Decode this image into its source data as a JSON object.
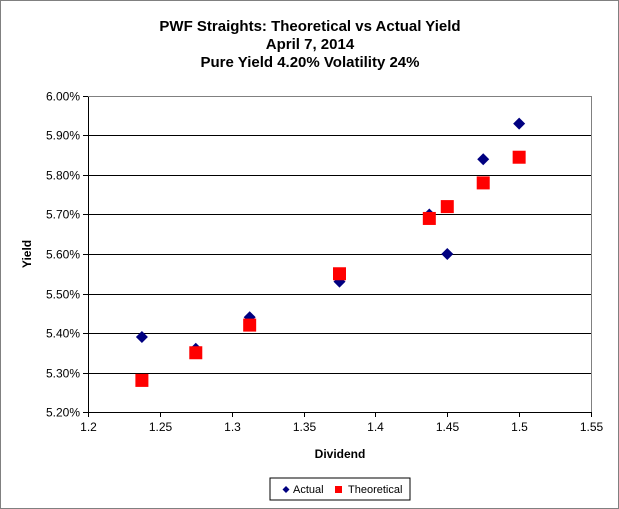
{
  "chart_data": {
    "type": "scatter",
    "title": [
      "PWF Straights: Theoretical vs Actual Yield",
      "April 7, 2014",
      "Pure Yield 4.20% Volatility 24%"
    ],
    "xlabel": "Dividend",
    "ylabel": "Yield",
    "xlim": [
      1.2,
      1.55
    ],
    "ylim": [
      5.2,
      6.0
    ],
    "x_ticks": [
      "1.2",
      "1.25",
      "1.3",
      "1.35",
      "1.4",
      "1.45",
      "1.5",
      "1.55"
    ],
    "x_tick_values": [
      1.2,
      1.25,
      1.3,
      1.35,
      1.4,
      1.45,
      1.5,
      1.55
    ],
    "y_ticks": [
      "5.20%",
      "5.30%",
      "5.40%",
      "5.50%",
      "5.60%",
      "5.70%",
      "5.80%",
      "5.90%",
      "6.00%"
    ],
    "y_tick_values": [
      5.2,
      5.3,
      5.4,
      5.5,
      5.6,
      5.7,
      5.8,
      5.9,
      6.0
    ],
    "grid": "horizontal",
    "legend_position": "bottom",
    "series": [
      {
        "name": "Actual",
        "marker": "diamond",
        "color": "#000080",
        "x": [
          1.2375,
          1.275,
          1.3125,
          1.375,
          1.4375,
          1.45,
          1.475,
          1.5
        ],
        "y": [
          5.39,
          5.36,
          5.44,
          5.53,
          5.7,
          5.6,
          5.84,
          5.93
        ]
      },
      {
        "name": "Theoretical",
        "marker": "square",
        "color": "#ff0000",
        "x": [
          1.2375,
          1.275,
          1.3125,
          1.375,
          1.4375,
          1.45,
          1.475,
          1.5
        ],
        "y": [
          5.28,
          5.35,
          5.42,
          5.55,
          5.69,
          5.72,
          5.78,
          5.845
        ]
      }
    ]
  }
}
